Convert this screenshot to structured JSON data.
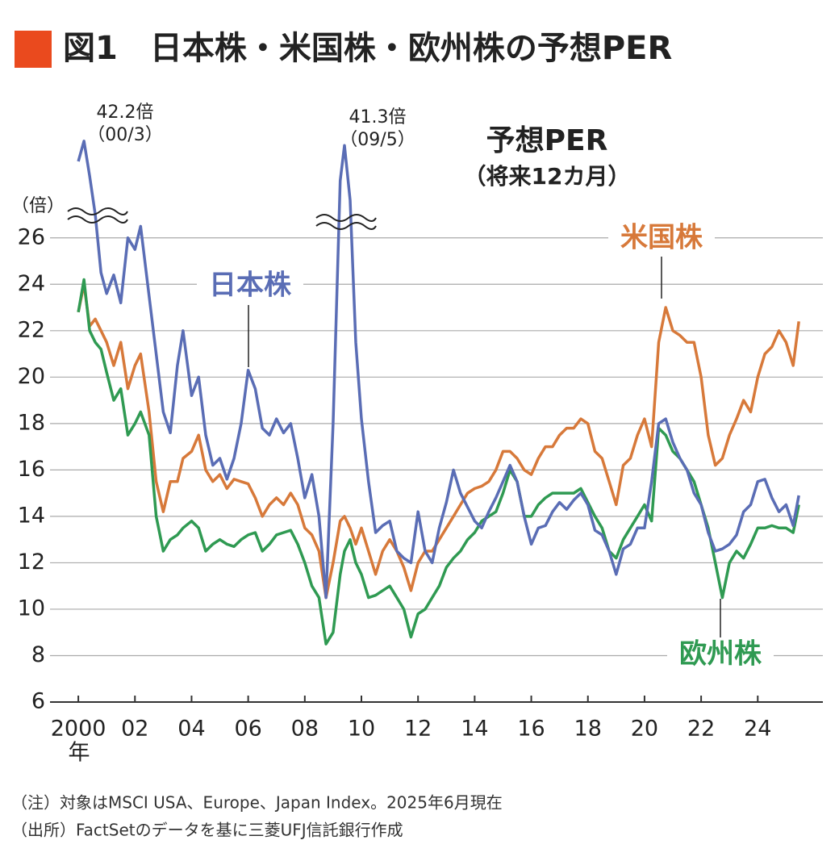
{
  "chart_data": {
    "type": "line",
    "title": "図1　日本株・米国株・欧州株の予想PER",
    "subtitle": "予想PER",
    "subtitle_note": "（将来12カ月）",
    "y_label": "（倍）",
    "x_unit": "年",
    "notes": [
      "（注）対象はMSCI USA、Europe、Japan Index。2025年6月現在",
      "（出所）FactSetのデータを基に三菱UFJ信託銀行作成"
    ],
    "annotations": [
      {
        "text": "42.2倍",
        "sub": "（00/3）"
      },
      {
        "text": "41.3倍",
        "sub": "（09/5）"
      }
    ],
    "ylim": [
      6,
      43
    ],
    "ybreak": 27,
    "yticks": [
      6,
      8,
      10,
      12,
      14,
      16,
      18,
      20,
      22,
      24,
      26
    ],
    "xlim": [
      1999,
      2026.3
    ],
    "xticks": [
      {
        "value": 2000,
        "label": "2000"
      },
      {
        "value": 2002,
        "label": "02"
      },
      {
        "value": 2004,
        "label": "04"
      },
      {
        "value": 2006,
        "label": "06"
      },
      {
        "value": 2008,
        "label": "08"
      },
      {
        "value": 2010,
        "label": "10"
      },
      {
        "value": 2012,
        "label": "12"
      },
      {
        "value": 2014,
        "label": "14"
      },
      {
        "value": 2016,
        "label": "16"
      },
      {
        "value": 2018,
        "label": "18"
      },
      {
        "value": 2020,
        "label": "20"
      },
      {
        "value": 2022,
        "label": "22"
      },
      {
        "value": 2024,
        "label": "24"
      }
    ],
    "grid": true,
    "x": [
      2000.0,
      2000.2,
      2000.4,
      2000.6,
      2000.8,
      2001.0,
      2001.25,
      2001.5,
      2001.75,
      2002.0,
      2002.2,
      2002.5,
      2002.75,
      2003.0,
      2003.25,
      2003.5,
      2003.7,
      2004.0,
      2004.25,
      2004.5,
      2004.75,
      2005.0,
      2005.25,
      2005.5,
      2005.75,
      2006.0,
      2006.25,
      2006.5,
      2006.75,
      2007.0,
      2007.25,
      2007.5,
      2007.75,
      2008.0,
      2008.25,
      2008.5,
      2008.75,
      2009.0,
      2009.25,
      2009.4,
      2009.6,
      2009.8,
      2010.0,
      2010.25,
      2010.5,
      2010.75,
      2011.0,
      2011.25,
      2011.5,
      2011.75,
      2012.0,
      2012.25,
      2012.5,
      2012.75,
      2013.0,
      2013.25,
      2013.5,
      2013.75,
      2014.0,
      2014.25,
      2014.5,
      2014.75,
      2015.0,
      2015.25,
      2015.5,
      2015.75,
      2016.0,
      2016.25,
      2016.5,
      2016.75,
      2017.0,
      2017.25,
      2017.5,
      2017.75,
      2018.0,
      2018.25,
      2018.5,
      2018.75,
      2019.0,
      2019.25,
      2019.5,
      2019.75,
      2020.0,
      2020.25,
      2020.5,
      2020.75,
      2021.0,
      2021.25,
      2021.5,
      2021.75,
      2022.0,
      2022.25,
      2022.5,
      2022.75,
      2023.0,
      2023.25,
      2023.5,
      2023.75,
      2024.0,
      2024.25,
      2024.5,
      2024.75,
      2025.0,
      2025.25,
      2025.45
    ],
    "series": [
      {
        "name": "日本株",
        "color": "#5a6db5",
        "values": [
          38,
          42.2,
          35,
          27,
          24.5,
          23.6,
          24.4,
          23.2,
          26,
          25.5,
          26.5,
          23.5,
          21,
          18.5,
          17.6,
          20.5,
          22,
          19.2,
          20,
          17.5,
          16.2,
          16.5,
          15.6,
          16.5,
          18,
          20.3,
          19.5,
          17.8,
          17.5,
          18.2,
          17.6,
          18,
          16.5,
          14.8,
          15.8,
          14,
          10.5,
          18,
          34,
          41.3,
          30,
          21.5,
          18.2,
          15.5,
          13.3,
          13.6,
          13.8,
          12.5,
          12.2,
          12,
          14.2,
          12.5,
          12,
          13.5,
          14.6,
          16,
          15,
          14.4,
          13.8,
          13.5,
          14.2,
          14.8,
          15.5,
          16.2,
          15.5,
          14,
          12.8,
          13.5,
          13.6,
          14.2,
          14.6,
          14.3,
          14.7,
          15,
          14.5,
          13.4,
          13.2,
          12.5,
          11.5,
          12.6,
          12.8,
          13.5,
          13.5,
          15.5,
          18,
          18.2,
          17.2,
          16.5,
          16,
          15,
          14.5,
          13.3,
          12.5,
          12.6,
          12.8,
          13.2,
          14.2,
          14.5,
          15.5,
          15.6,
          14.8,
          14.2,
          14.5,
          13.6,
          14.9
        ]
      },
      {
        "name": "米国株",
        "color": "#d7793a",
        "values": [
          22.8,
          24,
          22.2,
          22.5,
          22,
          21.5,
          20.5,
          21.5,
          19.5,
          20.5,
          21,
          18.5,
          15.5,
          14.2,
          15.5,
          15.5,
          16.5,
          16.8,
          17.5,
          16,
          15.5,
          15.8,
          15.2,
          15.6,
          15.5,
          15.4,
          14.8,
          14,
          14.5,
          14.8,
          14.5,
          15,
          14.5,
          13.5,
          13.2,
          12.5,
          10.5,
          12,
          13.8,
          14,
          13.5,
          12.8,
          13.5,
          12.5,
          11.5,
          12.5,
          13,
          12.5,
          11.8,
          10.8,
          12,
          12.5,
          12.5,
          13,
          13.5,
          14,
          14.5,
          15,
          15.2,
          15.3,
          15.5,
          16,
          16.8,
          16.8,
          16.5,
          16,
          15.8,
          16.5,
          17,
          17,
          17.5,
          17.8,
          17.8,
          18.2,
          18,
          16.8,
          16.5,
          15.5,
          14.5,
          16.2,
          16.5,
          17.5,
          18.2,
          17,
          21.5,
          23,
          22,
          21.8,
          21.5,
          21.5,
          20,
          17.5,
          16.2,
          16.5,
          17.5,
          18.2,
          19,
          18.5,
          20,
          21,
          21.3,
          22,
          21.5,
          20.5,
          22.4
        ]
      },
      {
        "name": "欧州株",
        "color": "#2f9a52",
        "values": [
          22.8,
          24.2,
          22,
          21.5,
          21.2,
          20.2,
          19,
          19.5,
          17.5,
          18,
          18.5,
          17.5,
          14,
          12.5,
          13,
          13.2,
          13.5,
          13.8,
          13.5,
          12.5,
          12.8,
          13,
          12.8,
          12.7,
          13,
          13.2,
          13.3,
          12.5,
          12.8,
          13.2,
          13.3,
          13.4,
          12.8,
          12,
          11,
          10.5,
          8.5,
          9,
          11.5,
          12.5,
          13,
          12,
          11.5,
          10.5,
          10.6,
          10.8,
          11,
          10.5,
          10,
          8.8,
          9.8,
          10,
          10.5,
          11,
          11.8,
          12.2,
          12.5,
          13,
          13.3,
          13.8,
          14,
          14.2,
          15,
          16,
          15.5,
          14,
          14,
          14.5,
          14.8,
          15,
          15,
          15,
          15,
          15.2,
          14.6,
          14,
          13.5,
          12.5,
          12.2,
          13,
          13.5,
          14,
          14.5,
          13.8,
          17.8,
          17.5,
          16.8,
          16.5,
          16,
          15.5,
          14.5,
          13.5,
          12,
          10.5,
          12,
          12.5,
          12.2,
          12.8,
          13.5,
          13.5,
          13.6,
          13.5,
          13.5,
          13.3,
          14.5
        ]
      }
    ]
  }
}
